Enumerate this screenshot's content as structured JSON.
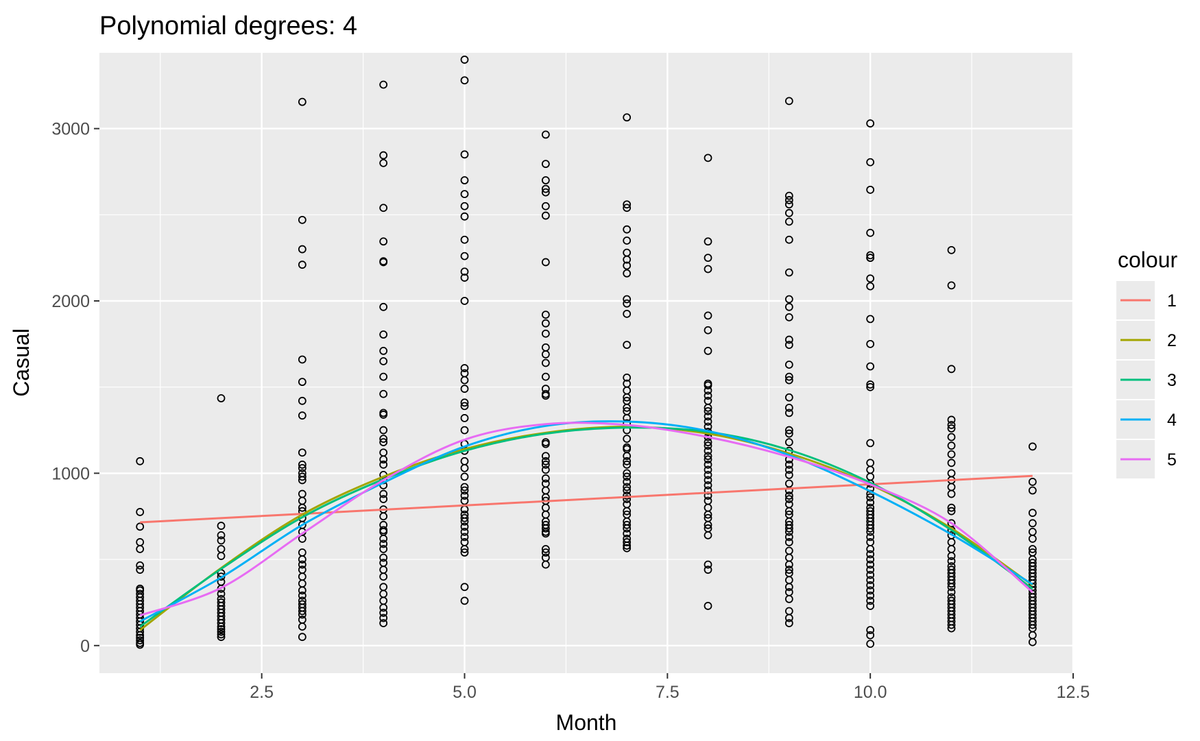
{
  "chart_data": {
    "type": "scatter",
    "title": "Polynomial degrees: 4",
    "xlabel": "Month",
    "ylabel": "Casual",
    "xlim": [
      0.5,
      12.5
    ],
    "ylim": [
      -160,
      3440
    ],
    "x_ticks": [
      2.5,
      5.0,
      7.5,
      10.0,
      12.5
    ],
    "x_tick_labels": [
      "2.5",
      "5.0",
      "7.5",
      "10.0",
      "12.5"
    ],
    "y_ticks": [
      0,
      1000,
      2000,
      3000
    ],
    "y_tick_labels": [
      "0",
      "1000",
      "2000",
      "3000"
    ],
    "grid": true,
    "background": "#ebebeb",
    "legend": {
      "title": "colour",
      "placement": "right"
    },
    "points": [
      {
        "x": 1,
        "y": [
          1070,
          775,
          690,
          600,
          560,
          465,
          440,
          330,
          320,
          300,
          280,
          260,
          240,
          220,
          200,
          180,
          160,
          140,
          120,
          100,
          80,
          60,
          45,
          30,
          15,
          5
        ]
      },
      {
        "x": 2,
        "y": [
          1435,
          695,
          640,
          610,
          560,
          520,
          420,
          400,
          370,
          330,
          300,
          270,
          250,
          230,
          210,
          190,
          170,
          150,
          130,
          110,
          95,
          80,
          65,
          50
        ]
      },
      {
        "x": 3,
        "y": [
          3155,
          2470,
          2300,
          2210,
          1660,
          1530,
          1420,
          1335,
          1120,
          1050,
          1030,
          1000,
          980,
          960,
          880,
          840,
          800,
          780,
          740,
          700,
          660,
          620,
          540,
          500,
          470,
          440,
          400,
          360,
          320,
          290,
          260,
          240,
          220,
          200,
          180,
          150,
          110,
          50
        ]
      },
      {
        "x": 4,
        "y": [
          3255,
          2845,
          2800,
          2540,
          2345,
          2230,
          2225,
          1965,
          1805,
          1710,
          1650,
          1560,
          1460,
          1350,
          1340,
          1250,
          1200,
          1180,
          1120,
          1080,
          1050,
          990,
          960,
          930,
          880,
          850,
          790,
          750,
          700,
          670,
          660,
          620,
          590,
          560,
          510,
          480,
          440,
          400,
          340,
          300,
          260,
          220,
          190,
          160,
          130
        ]
      },
      {
        "x": 5,
        "y": [
          3400,
          3280,
          2850,
          2700,
          2620,
          2550,
          2490,
          2355,
          2260,
          2170,
          2135,
          2000,
          1610,
          1580,
          1540,
          1490,
          1410,
          1390,
          1320,
          1250,
          1170,
          1130,
          1070,
          1030,
          980,
          920,
          900,
          870,
          840,
          790,
          760,
          740,
          720,
          690,
          660,
          630,
          600,
          560,
          540,
          340,
          260
        ]
      },
      {
        "x": 6,
        "y": [
          2965,
          2795,
          2700,
          2650,
          2630,
          2550,
          2495,
          2225,
          1920,
          1870,
          1810,
          1730,
          1690,
          1640,
          1560,
          1490,
          1460,
          1450,
          1180,
          1170,
          1100,
          1070,
          1050,
          1020,
          970,
          940,
          900,
          860,
          840,
          800,
          760,
          720,
          700,
          680,
          660,
          650,
          560,
          540,
          510,
          470
        ]
      },
      {
        "x": 7,
        "y": [
          3065,
          2560,
          2540,
          2415,
          2350,
          2280,
          2240,
          2205,
          2160,
          2010,
          1985,
          1925,
          1745,
          1555,
          1520,
          1480,
          1440,
          1420,
          1380,
          1360,
          1320,
          1290,
          1250,
          1200,
          1150,
          1140,
          1100,
          1070,
          1050,
          1000,
          980,
          950,
          920,
          900,
          870,
          850,
          820,
          780,
          760,
          720,
          700,
          680,
          650,
          620,
          600,
          580,
          565
        ]
      },
      {
        "x": 8,
        "y": [
          2830,
          2345,
          2250,
          2185,
          1915,
          1830,
          1710,
          1520,
          1510,
          1480,
          1450,
          1420,
          1380,
          1360,
          1330,
          1300,
          1270,
          1240,
          1210,
          1180,
          1160,
          1130,
          1100,
          1080,
          1050,
          1020,
          990,
          960,
          930,
          900,
          870,
          840,
          800,
          760,
          740,
          700,
          680,
          640,
          470,
          440,
          230
        ]
      },
      {
        "x": 9,
        "y": [
          3160,
          2610,
          2585,
          2560,
          2510,
          2460,
          2355,
          2165,
          2010,
          1965,
          1905,
          1775,
          1745,
          1630,
          1560,
          1540,
          1440,
          1380,
          1350,
          1250,
          1230,
          1180,
          1130,
          1080,
          1050,
          1020,
          990,
          940,
          900,
          870,
          850,
          820,
          780,
          760,
          720,
          700,
          680,
          660,
          630,
          600,
          550,
          510,
          470,
          440,
          420,
          380,
          340,
          310,
          270,
          200,
          160,
          130
        ]
      },
      {
        "x": 10,
        "y": [
          3030,
          2805,
          2645,
          2395,
          2265,
          2250,
          2250,
          2130,
          2085,
          1895,
          1750,
          1620,
          1515,
          1500,
          1175,
          1060,
          1020,
          980,
          940,
          910,
          880,
          860,
          830,
          800,
          780,
          760,
          740,
          720,
          700,
          680,
          660,
          630,
          600,
          560,
          530,
          500,
          470,
          440,
          410,
          380,
          350,
          320,
          290,
          260,
          230,
          90,
          60,
          10
        ]
      },
      {
        "x": 11,
        "y": [
          2295,
          2090,
          1605,
          1310,
          1280,
          1260,
          1210,
          1160,
          1110,
          1060,
          1000,
          960,
          920,
          880,
          800,
          780,
          710,
          670,
          640,
          600,
          560,
          520,
          490,
          460,
          440,
          420,
          400,
          380,
          360,
          340,
          310,
          280,
          260,
          240,
          220,
          200,
          180,
          160,
          140,
          120,
          100
        ]
      },
      {
        "x": 12,
        "y": [
          1155,
          950,
          900,
          770,
          710,
          660,
          620,
          560,
          540,
          500,
          480,
          460,
          440,
          420,
          400,
          380,
          360,
          340,
          320,
          300,
          280,
          260,
          240,
          220,
          200,
          180,
          160,
          140,
          120,
          100,
          60,
          20
        ]
      }
    ],
    "series": [
      {
        "name": "1",
        "color": "#f8766d",
        "x": [
          1,
          12
        ],
        "y": [
          715,
          985
        ]
      },
      {
        "name": "2",
        "color": "#a3a500",
        "x": [
          1,
          2,
          3,
          4,
          5,
          6,
          7,
          8,
          9,
          10,
          11,
          12
        ],
        "y": [
          90,
          450,
          760,
          980,
          1140,
          1235,
          1270,
          1230,
          1115,
          935,
          680,
          350
        ]
      },
      {
        "name": "3",
        "color": "#00bf7d",
        "x": [
          1,
          2,
          3,
          4,
          5,
          6,
          7,
          8,
          9,
          10,
          11,
          12
        ],
        "y": [
          110,
          445,
          745,
          965,
          1130,
          1230,
          1265,
          1240,
          1135,
          945,
          670,
          330
        ]
      },
      {
        "name": "4",
        "color": "#00b0f6",
        "x": [
          1,
          2,
          3,
          4,
          5,
          6,
          7,
          8,
          9,
          10,
          11,
          12
        ],
        "y": [
          140,
          395,
          700,
          945,
          1155,
          1275,
          1300,
          1245,
          1105,
          895,
          645,
          355
        ]
      },
      {
        "name": "5",
        "color": "#e76bf3",
        "x": [
          1,
          2,
          3,
          4,
          5,
          6,
          7,
          8,
          9,
          10,
          11,
          12
        ],
        "y": [
          175,
          335,
          650,
          960,
          1195,
          1285,
          1280,
          1210,
          1095,
          935,
          710,
          310
        ]
      }
    ]
  }
}
